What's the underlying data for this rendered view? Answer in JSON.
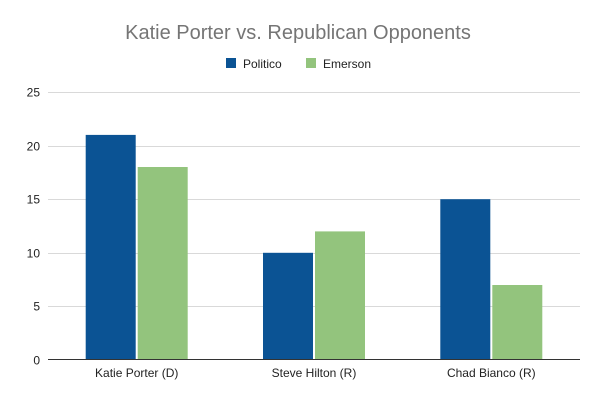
{
  "chart_data": {
    "type": "bar",
    "title": "Katie Porter vs. Republican Opponents",
    "xlabel": "",
    "ylabel": "",
    "categories": [
      "Katie Porter (D)",
      "Steve Hilton (R)",
      "Chad Bianco (R)"
    ],
    "series": [
      {
        "name": "Politico",
        "color": "#0b5394",
        "values": [
          21,
          10,
          15
        ]
      },
      {
        "name": "Emerson",
        "color": "#93c47d",
        "values": [
          18,
          12,
          7
        ]
      }
    ],
    "ylim": [
      0,
      25
    ],
    "yticks": [
      0,
      5,
      10,
      15,
      20,
      25
    ],
    "grid": true,
    "legend_position": "top"
  }
}
